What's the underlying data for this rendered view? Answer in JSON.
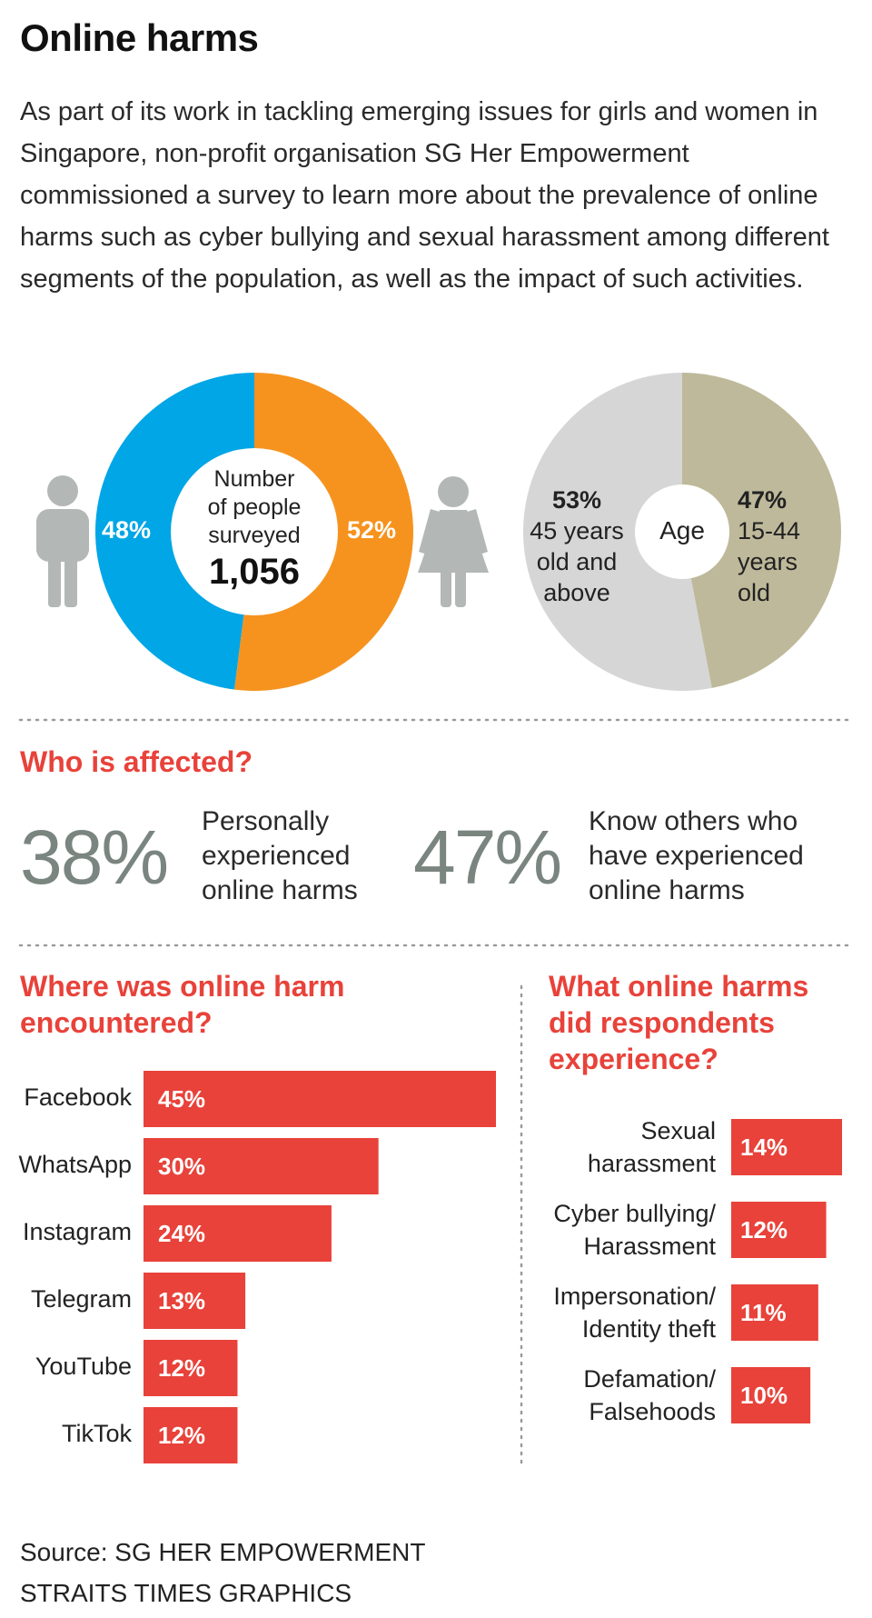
{
  "title": "Online harms",
  "intro": "As part of its work in tackling emerging issues for girls and women in Singapore, non-profit organisation SG Her Empowerment commissioned a survey to learn more about the prevalence of online harms such as cyber bullying and sexual harassment among different segments of the population, as well as the impact of such activities.",
  "colors": {
    "male": "#00a6e6",
    "female": "#f6931e",
    "older": "#d6d6d6",
    "younger": "#beb99a",
    "accent": "#e8423a",
    "figure": "#b3b8b6",
    "bigtext": "#7a8580"
  },
  "gender_donut": {
    "center_line1": "Number",
    "center_line2": "of people",
    "center_line3": "surveyed",
    "total": "1,056",
    "male_label": "48%",
    "female_label": "52%"
  },
  "age_pie": {
    "center": "Age",
    "older_pct": "53%",
    "older_l1": "45 years",
    "older_l2": "old and",
    "older_l3": "above",
    "younger_pct": "47%",
    "younger_l1": "15-44",
    "younger_l2": "years",
    "younger_l3": "old"
  },
  "affected": {
    "heading": "Who is affected?",
    "stat1_value": "38%",
    "stat1_l1": "Personally",
    "stat1_l2": "experienced",
    "stat1_l3": "online harms",
    "stat2_value": "47%",
    "stat2_l1": "Know others who",
    "stat2_l2": "have experienced",
    "stat2_l3": "online harms"
  },
  "platforms_heading_l1": "Where was online harm",
  "platforms_heading_l2": "encountered?",
  "harms_heading_l1": "What online harms",
  "harms_heading_l2": "did respondents",
  "harms_heading_l3": "experience?",
  "chart_data": [
    {
      "type": "pie",
      "title": "Number of people surveyed 1,056",
      "categories": [
        "Male",
        "Female"
      ],
      "values": [
        48,
        52
      ]
    },
    {
      "type": "pie",
      "title": "Age",
      "categories": [
        "45 years old and above",
        "15-44 years old"
      ],
      "values": [
        53,
        47
      ]
    },
    {
      "type": "bar",
      "title": "Where was online harm encountered?",
      "categories": [
        "Facebook",
        "WhatsApp",
        "Instagram",
        "Telegram",
        "YouTube",
        "TikTok"
      ],
      "values": [
        45,
        30,
        24,
        13,
        12,
        12
      ],
      "labels": [
        "45%",
        "30%",
        "24%",
        "13%",
        "12%",
        "12%"
      ]
    },
    {
      "type": "bar",
      "title": "What online harms did respondents experience?",
      "categories": [
        [
          "Sexual",
          "harassment"
        ],
        [
          "Cyber bullying/",
          "Harassment"
        ],
        [
          "Impersonation/",
          "Identity theft"
        ],
        [
          "Defamation/",
          "Falsehoods"
        ]
      ],
      "values": [
        14,
        12,
        11,
        10
      ],
      "labels": [
        "14%",
        "12%",
        "11%",
        "10%"
      ]
    }
  ],
  "source_l1": "Source: SG HER EMPOWERMENT",
  "source_l2": "STRAITS TIMES GRAPHICS"
}
